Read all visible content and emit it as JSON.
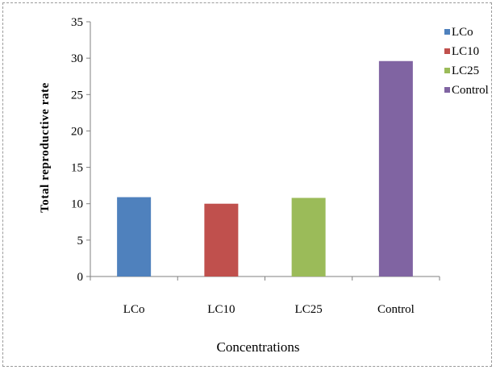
{
  "chart_data": {
    "type": "bar",
    "title": "",
    "xlabel": "Concentrations",
    "ylabel": "Total reproductive rate",
    "categories": [
      "LCo",
      "LC10",
      "LC25",
      "Control"
    ],
    "values": [
      10.9,
      10.0,
      10.8,
      29.6
    ],
    "colors": [
      "#4f81bd",
      "#c0504d",
      "#9bbb59",
      "#8064a2"
    ],
    "ylim": [
      0,
      35
    ],
    "yticks": [
      0,
      5,
      10,
      15,
      20,
      25,
      30,
      35
    ],
    "grid": false,
    "legend": {
      "position": "right",
      "entries": [
        "LCo",
        "LC10",
        "LC25",
        "Control"
      ]
    }
  }
}
